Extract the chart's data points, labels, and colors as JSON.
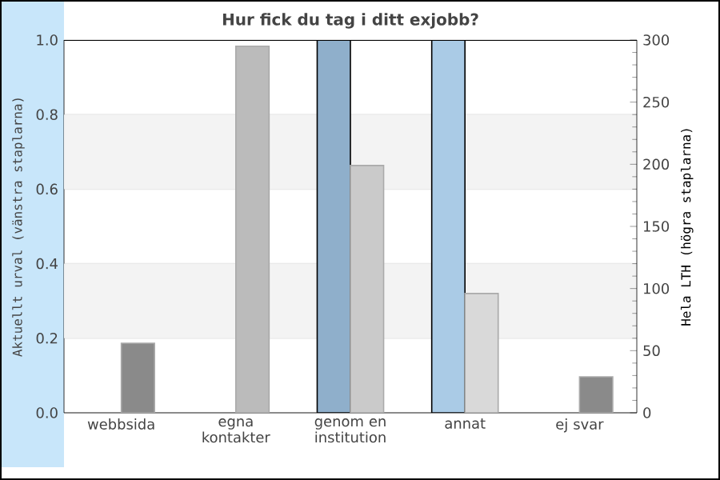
{
  "chart_data": {
    "type": "bar",
    "title": "Hur fick du tag i ditt exjobb?",
    "ylabel": "Aktuellt urval (vänstra staplarna)",
    "y2label": "Hela LTH (högra staplarna)",
    "categories": [
      "webbsida",
      "egna kontakter",
      "genom en institution",
      "annat",
      "ej svar"
    ],
    "series": [
      {
        "colors": [
          "#8fafcb",
          "#8fafcb",
          "#8fafcb",
          "#aacbe6",
          "#aacbe6"
        ],
        "values": [
          null,
          null,
          1.0,
          1.0,
          null
        ]
      },
      {
        "axis": "y2",
        "colors": [
          "#8a8a8a",
          "#bbbbbb",
          "#cacaca",
          "#d9d9d9",
          "#8a8a8a"
        ],
        "values": [
          56,
          295,
          199,
          96,
          29
        ]
      }
    ],
    "ylim": [
      0,
      1
    ],
    "yticks": [
      {
        "value": 0,
        "label": "0.0"
      },
      0.2,
      0.4,
      0.6,
      0.8,
      {
        "value": 1,
        "label": "1.0"
      }
    ],
    "y2lim": [
      0,
      300
    ],
    "y2ticks": [
      0,
      50,
      100,
      150,
      200,
      250,
      300
    ],
    "grid": "y",
    "bands": [
      {
        "axis": "y",
        "from": 0.2,
        "to": 0.4,
        "color": "#f3f3f3"
      },
      {
        "axis": "y",
        "from": 0.6,
        "to": 0.8,
        "color": "#f3f3f3"
      }
    ]
  }
}
